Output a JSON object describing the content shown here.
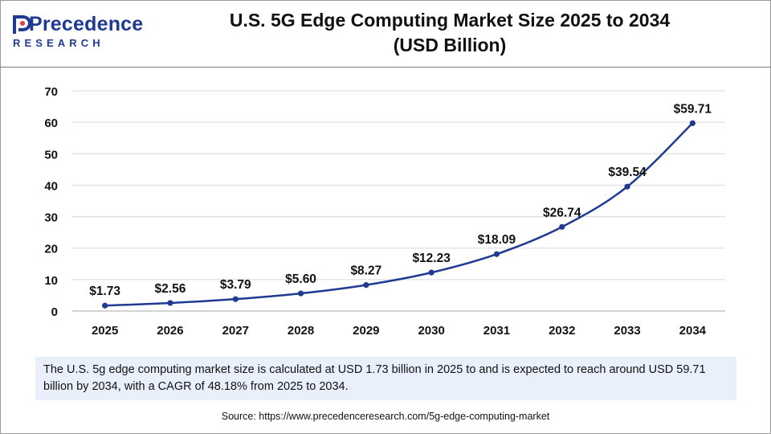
{
  "logo": {
    "name": "Precedence",
    "sub": "RESEARCH"
  },
  "title": {
    "line1": "U.S. 5G Edge Computing Market Size 2025 to 2034",
    "line2": "(USD Billion)"
  },
  "chart_data": {
    "type": "line",
    "title": "U.S. 5G Edge Computing Market Size 2025 to 2034 (USD Billion)",
    "xlabel": "",
    "ylabel": "",
    "ylim": [
      0,
      70
    ],
    "yticks": [
      0,
      10,
      20,
      30,
      40,
      50,
      60,
      70
    ],
    "categories": [
      "2025",
      "2026",
      "2027",
      "2028",
      "2029",
      "2030",
      "2031",
      "2032",
      "2033",
      "2034"
    ],
    "series": [
      {
        "name": "U.S. 5G Edge Computing Market Size",
        "values": [
          1.73,
          2.56,
          3.79,
          5.6,
          8.27,
          12.23,
          18.09,
          26.74,
          39.54,
          59.71
        ],
        "labels": [
          "$1.73",
          "$2.56",
          "$3.79",
          "$5.60",
          "$8.27",
          "$12.23",
          "$18.09",
          "$26.74",
          "$39.54",
          "$59.71"
        ],
        "color": "#1f3a93"
      }
    ],
    "grid": true
  },
  "summary": "The U.S. 5g edge computing market size is calculated at USD 1.73 billion in 2025 to and is expected to reach around USD 59.71 billion by 2034, with a CAGR of 48.18% from 2025 to 2034.",
  "source": "Source: https://www.precedenceresearch.com/5g-edge-computing-market",
  "colors": {
    "brand": "#1f3a93",
    "grid": "#d9d9d9",
    "summary_bg": "#e9f0fb"
  }
}
